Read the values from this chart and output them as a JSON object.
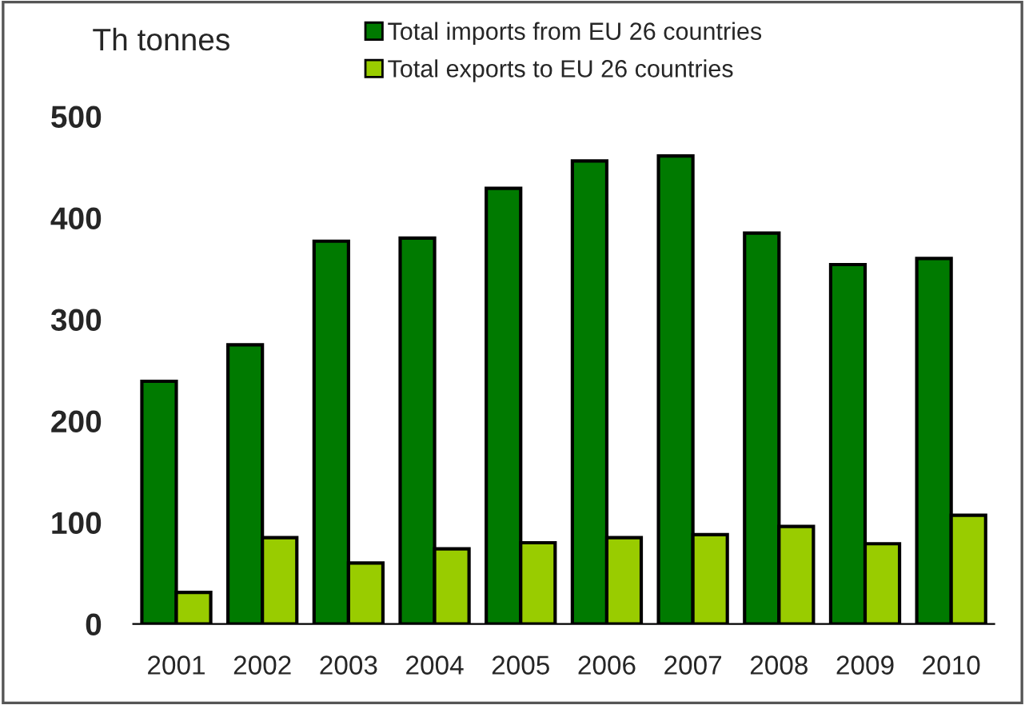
{
  "chart_data": {
    "type": "bar",
    "ylabel": "Th tonnes",
    "categories": [
      "2001",
      "2002",
      "2003",
      "2004",
      "2005",
      "2006",
      "2007",
      "2008",
      "2009",
      "2010"
    ],
    "series": [
      {
        "name": "Total imports from EU 26 countries",
        "color": "#007a00",
        "values": [
          239,
          275,
          377,
          380,
          429,
          456,
          461,
          385,
          354,
          360
        ]
      },
      {
        "name": "Total exports to EU 26 countries",
        "color": "#99cc00",
        "values": [
          31,
          85,
          60,
          74,
          80,
          85,
          88,
          96,
          79,
          107
        ]
      }
    ],
    "ylim": [
      0,
      500
    ],
    "yticks": [
      0,
      100,
      200,
      300,
      400,
      500
    ],
    "grid": false,
    "legend": "top"
  }
}
